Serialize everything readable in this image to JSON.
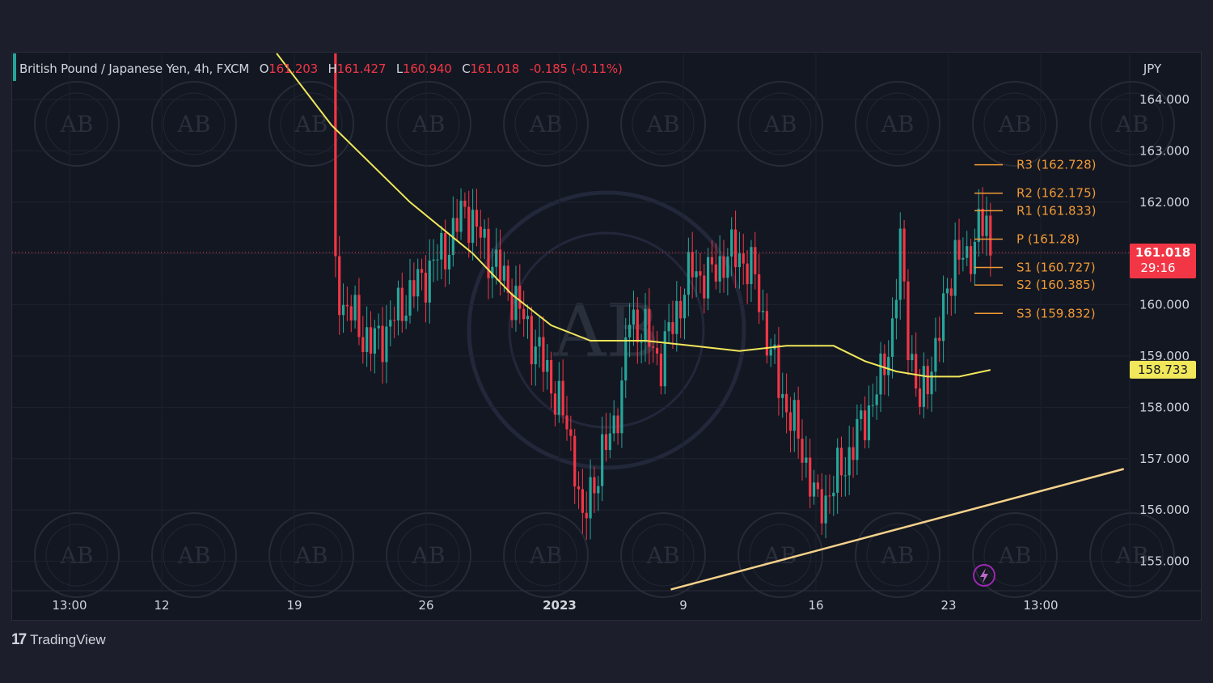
{
  "legend": {
    "symbol": "British Pound / Japanese Yen, 4h, FXCM",
    "o_label": "O",
    "o_value": "161.203",
    "h_label": "H",
    "h_value": "161.427",
    "l_label": "L",
    "l_value": "160.940",
    "c_label": "C",
    "c_value": "161.018",
    "change": "-0.185 (-0.11%)"
  },
  "brand": {
    "logo": "17",
    "name": "TradingView"
  },
  "colors": {
    "up": "#26a69a",
    "down": "#f23645",
    "ma": "#f1e75a",
    "trendline": "#f5d28a",
    "pivot": "#f19a34",
    "price_tag": "#f23645",
    "ma_tag": "#f1e75a"
  },
  "chart_data": {
    "type": "line",
    "title": "British Pound / Japanese Yen, 4h, FXCM",
    "currency_label": "JPY",
    "ylim": [
      154.4,
      164.8
    ],
    "y_ticks": [
      "164.000",
      "163.000",
      "162.000",
      "161.000",
      "160.000",
      "159.000",
      "158.000",
      "157.000",
      "156.000",
      "155.000"
    ],
    "x_ticks": [
      "13:00",
      "12",
      "19",
      "26",
      "2023",
      "9",
      "16",
      "23",
      "13:00"
    ],
    "last_price": {
      "value": 161.018,
      "label": "161.018",
      "countdown": "29:16"
    },
    "ma_tag": {
      "value": 158.733,
      "label": "158.733"
    },
    "pivots": [
      {
        "label": "R3 (162.728)",
        "value": 162.728
      },
      {
        "label": "R2 (162.175)",
        "value": 162.175
      },
      {
        "label": "R1 (161.833)",
        "value": 161.833
      },
      {
        "label": "P (161.28)",
        "value": 161.28
      },
      {
        "label": "S1 (160.727)",
        "value": 160.727
      },
      {
        "label": "S2 (160.385)",
        "value": 160.385
      },
      {
        "label": "S3 (159.832)",
        "value": 159.832
      }
    ],
    "close_path": [
      [
        0,
        165.2
      ],
      [
        1,
        160.6
      ],
      [
        3,
        160.0
      ],
      [
        6,
        159.7
      ],
      [
        10,
        159.2
      ],
      [
        14,
        159.5
      ],
      [
        18,
        160.0
      ],
      [
        24,
        160.6
      ],
      [
        30,
        161.2
      ],
      [
        34,
        161.9
      ],
      [
        40,
        161.0
      ],
      [
        46,
        160.2
      ],
      [
        52,
        159.2
      ],
      [
        58,
        158.1
      ],
      [
        62,
        157.0
      ],
      [
        64,
        155.6
      ],
      [
        66,
        156.4
      ],
      [
        70,
        157.2
      ],
      [
        74,
        158.3
      ],
      [
        76,
        159.8
      ],
      [
        80,
        159.4
      ],
      [
        84,
        158.9
      ],
      [
        88,
        159.9
      ],
      [
        92,
        160.7
      ],
      [
        96,
        160.5
      ],
      [
        100,
        160.9
      ],
      [
        104,
        161.0
      ],
      [
        108,
        160.5
      ],
      [
        112,
        159.0
      ],
      [
        116,
        158.0
      ],
      [
        120,
        157.2
      ],
      [
        124,
        156.0
      ],
      [
        128,
        156.5
      ],
      [
        132,
        157.1
      ],
      [
        136,
        157.8
      ],
      [
        140,
        158.5
      ],
      [
        143,
        159.6
      ],
      [
        145,
        161.1
      ],
      [
        147,
        159.4
      ],
      [
        150,
        158.0
      ],
      [
        153,
        158.9
      ],
      [
        156,
        159.8
      ],
      [
        159,
        161.1
      ],
      [
        162,
        160.7
      ],
      [
        165,
        161.7
      ],
      [
        167,
        161.3
      ],
      [
        168,
        161.0
      ]
    ],
    "moving_average": [
      [
        -14,
        165.0
      ],
      [
        0,
        163.5
      ],
      [
        20,
        162.0
      ],
      [
        36,
        161.0
      ],
      [
        46,
        160.2
      ],
      [
        56,
        159.6
      ],
      [
        66,
        159.3
      ],
      [
        80,
        159.3
      ],
      [
        92,
        159.2
      ],
      [
        104,
        159.1
      ],
      [
        116,
        159.2
      ],
      [
        128,
        159.2
      ],
      [
        136,
        158.9
      ],
      [
        144,
        158.7
      ],
      [
        152,
        158.6
      ],
      [
        160,
        158.6
      ],
      [
        168,
        158.73
      ]
    ],
    "trendline": [
      [
        86.5,
        154.45
      ],
      [
        202,
        156.8
      ]
    ]
  }
}
